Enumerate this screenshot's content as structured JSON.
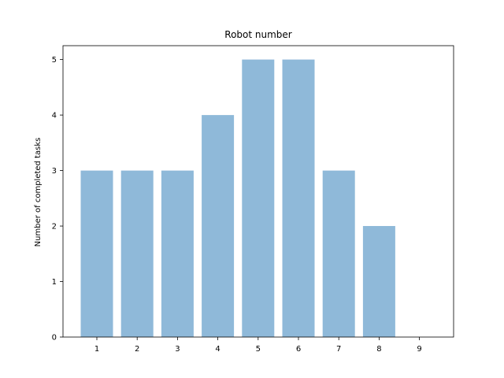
{
  "chart_data": {
    "type": "bar",
    "title": "Robot number",
    "xlabel": "",
    "ylabel": "Number of completed tasks",
    "categories": [
      "1",
      "2",
      "3",
      "4",
      "5",
      "6",
      "7",
      "8",
      "9"
    ],
    "values": [
      3,
      3,
      3,
      4,
      5,
      5,
      3,
      2,
      0
    ],
    "ylim": [
      0,
      5.25
    ],
    "yticks": [
      "0",
      "1",
      "2",
      "3",
      "4",
      "5"
    ],
    "bar_color": "#8fb9d9",
    "grid": false,
    "legend": "none"
  }
}
